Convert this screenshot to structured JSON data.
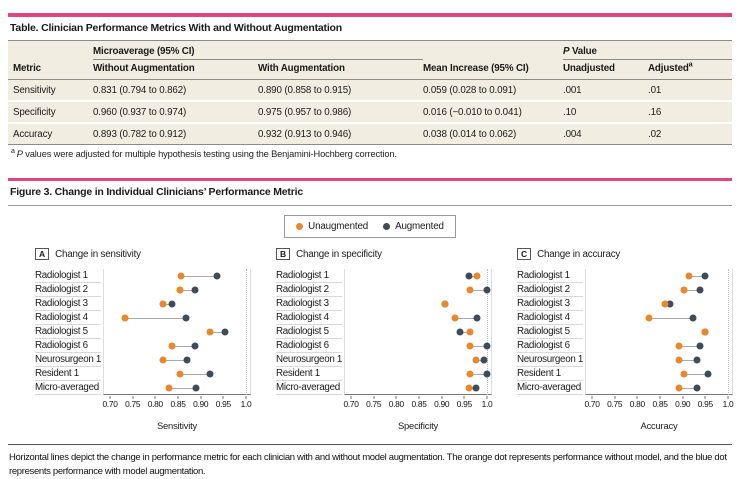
{
  "colors": {
    "accent_rule": "#e0457e",
    "table_beige": "#f1eee1",
    "unaugmented": "#e8872b",
    "augmented": "#3e4c59"
  },
  "table": {
    "title": "Table. Clinician Performance Metrics With and Without Augmentation",
    "span_headers": {
      "microaverage": "Microaverage (95% CI)",
      "p_italic": "P",
      "p_rest": " Value"
    },
    "columns": [
      {
        "label": "Metric"
      },
      {
        "label": "Without Augmentation"
      },
      {
        "label": "With Augmentation"
      },
      {
        "label": "Mean Increase (95% CI)"
      },
      {
        "label": "Unadjusted"
      },
      {
        "label": "Adjusted",
        "sup": "a"
      }
    ],
    "rows": [
      [
        "Sensitivity",
        "0.831 (0.794 to 0.862)",
        "0.890 (0.858 to 0.915)",
        "0.059 (0.028 to 0.091)",
        ".001",
        ".01"
      ],
      [
        "Specificity",
        "0.960 (0.937 to 0.974)",
        "0.975 (0.957 to 0.986)",
        "0.016 (−0.010 to 0.041)",
        ".10",
        ".16"
      ],
      [
        "Accuracy",
        "0.893 (0.782 to 0.912)",
        "0.932 (0.913 to 0.946)",
        "0.038 (0.014 to 0.062)",
        ".004",
        ".02"
      ]
    ],
    "footnote_marker": "a",
    "footnote_italic": "P",
    "footnote_rest": " values were adjusted for multiple hypothesis testing using the Benjamini-Hochberg correction."
  },
  "figure": {
    "title": "Figure 3. Change in Individual Clinicians’ Performance Metric",
    "legend": [
      {
        "label": "Unaugmented",
        "color": "#e8872b"
      },
      {
        "label": "Augmented",
        "color": "#3e4c59"
      }
    ],
    "caption": "Horizontal lines depict the change in performance metric for each clinician with and without model augmentation. The orange dot represents performance without model, and the blue dot represents performance with model augmentation."
  },
  "chart_data": [
    {
      "type": "scatter",
      "panel": "A",
      "title": "Change in sensitivity",
      "xlabel": "Sensitivity",
      "xlim": [
        0.7,
        1.0
      ],
      "xticks": [
        0.7,
        0.75,
        0.8,
        0.85,
        0.9,
        0.95,
        1.0
      ],
      "xtick_labels": [
        "0.70",
        "0.75",
        "0.80",
        "0.85",
        "0.90",
        "0.95",
        "1.0"
      ],
      "grid_x": [
        1.0
      ],
      "categories": [
        "Radiologist 1",
        "Radiologist 2",
        "Radiologist 3",
        "Radiologist 4",
        "Radiologist 5",
        "Radiologist 6",
        "Neurosurgeon 1",
        "Resident 1",
        "Micro-averaged"
      ],
      "series": [
        {
          "name": "Unaugmented",
          "color": "#e8872b",
          "values": [
            0.856,
            0.855,
            0.818,
            0.733,
            0.921,
            0.836,
            0.818,
            0.855,
            0.831
          ]
        },
        {
          "name": "Augmented",
          "color": "#3e4c59",
          "values": [
            0.937,
            0.887,
            0.836,
            0.868,
            0.953,
            0.887,
            0.87,
            0.92,
            0.89
          ]
        }
      ]
    },
    {
      "type": "scatter",
      "panel": "B",
      "title": "Change in specificity",
      "xlabel": "Specificity",
      "xlim": [
        0.7,
        1.0
      ],
      "xticks": [
        0.7,
        0.75,
        0.8,
        0.85,
        0.9,
        0.95,
        1.0
      ],
      "xtick_labels": [
        "0.70",
        "0.75",
        "0.80",
        "0.85",
        "0.90",
        "0.95",
        "1.0"
      ],
      "grid_x": [
        1.0
      ],
      "categories": [
        "Radiologist 1",
        "Radiologist 2",
        "Radiologist 3",
        "Radiologist 4",
        "Radiologist 5",
        "Radiologist 6",
        "Neurosurgeon 1",
        "Resident 1",
        "Micro-averaged"
      ],
      "series": [
        {
          "name": "Unaugmented",
          "color": "#e8872b",
          "values": [
            0.978,
            0.962,
            0.908,
            0.93,
            0.963,
            0.962,
            0.976,
            0.962,
            0.96
          ]
        },
        {
          "name": "Augmented",
          "color": "#3e4c59",
          "values": [
            0.961,
            1.0,
            0.908,
            0.978,
            0.941,
            1.0,
            0.994,
            1.0,
            0.975
          ]
        }
      ]
    },
    {
      "type": "scatter",
      "panel": "C",
      "title": "Change in accuracy",
      "xlabel": "Accuracy",
      "xlim": [
        0.7,
        1.0
      ],
      "xticks": [
        0.7,
        0.75,
        0.8,
        0.85,
        0.9,
        0.95,
        1.0
      ],
      "xtick_labels": [
        "0.70",
        "0.75",
        "0.80",
        "0.85",
        "0.90",
        "0.95",
        "1.0"
      ],
      "grid_x": [
        1.0
      ],
      "categories": [
        "Radiologist 1",
        "Radiologist 2",
        "Radiologist 3",
        "Radiologist 4",
        "Radiologist 5",
        "Radiologist 6",
        "Neurosurgeon 1",
        "Resident 1",
        "Micro-averaged"
      ],
      "series": [
        {
          "name": "Unaugmented",
          "color": "#e8872b",
          "values": [
            0.914,
            0.903,
            0.861,
            0.826,
            0.949,
            0.891,
            0.891,
            0.903,
            0.893
          ]
        },
        {
          "name": "Augmented",
          "color": "#3e4c59",
          "values": [
            0.949,
            0.939,
            0.872,
            0.922,
            0.949,
            0.939,
            0.931,
            0.956,
            0.932
          ]
        }
      ]
    }
  ]
}
